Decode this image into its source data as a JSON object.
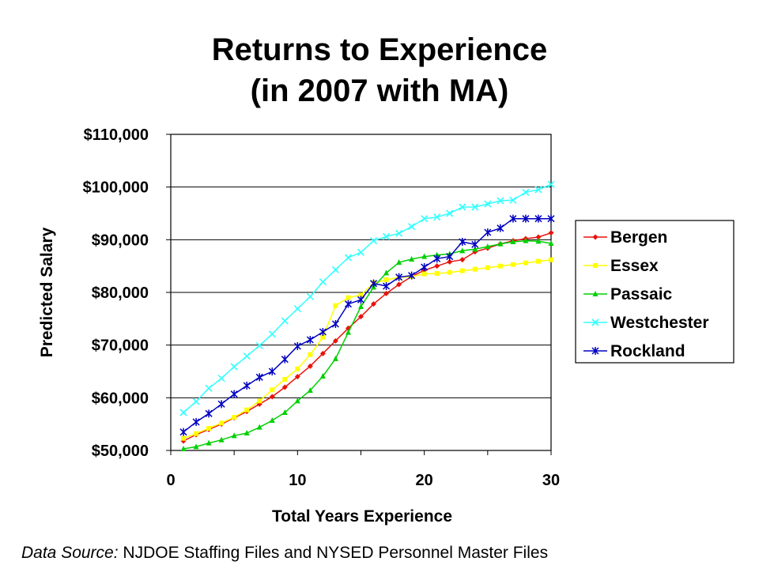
{
  "chart_data": {
    "type": "line",
    "title_line1": "Returns to Experience",
    "title_line2": "(in 2007 with MA)",
    "xlabel": "Total Years Experience",
    "ylabel": "Predicted Salary",
    "xlim": [
      0,
      30
    ],
    "ylim": [
      50000,
      110000
    ],
    "x_ticks": [
      0,
      10,
      20,
      30
    ],
    "y_ticks": [
      50000,
      60000,
      70000,
      80000,
      90000,
      100000,
      110000
    ],
    "y_tick_labels": [
      "$50,000",
      "$60,000",
      "$70,000",
      "$80,000",
      "$90,000",
      "$100,000",
      "$110,000"
    ],
    "x_tick_labels": [
      "0",
      "10",
      "20",
      "30"
    ],
    "grid": "horizontal",
    "legend_position": "right",
    "x": [
      1,
      2,
      3,
      4,
      5,
      6,
      7,
      8,
      9,
      10,
      11,
      12,
      13,
      14,
      15,
      16,
      17,
      18,
      19,
      20,
      21,
      22,
      23,
      24,
      25,
      26,
      27,
      28,
      29,
      30
    ],
    "series": [
      {
        "name": "Bergen",
        "color": "#e8130d",
        "marker": "diamond",
        "values": [
          51800,
          53000,
          54000,
          55000,
          56200,
          57400,
          58800,
          60200,
          62000,
          64000,
          66000,
          68400,
          70800,
          73200,
          75400,
          77800,
          79800,
          81500,
          83000,
          84200,
          85000,
          85800,
          86200,
          87700,
          88400,
          89200,
          89800,
          90200,
          90500,
          91300
        ]
      },
      {
        "name": "Essex",
        "color": "#ffff00",
        "marker": "square",
        "values": [
          52300,
          53200,
          54200,
          55200,
          56300,
          57700,
          59400,
          61500,
          63500,
          65500,
          68200,
          71500,
          77500,
          79000,
          79500,
          81800,
          82400,
          82800,
          83000,
          83500,
          83600,
          83800,
          84100,
          84400,
          84700,
          85000,
          85300,
          85600,
          85900,
          86200
        ]
      },
      {
        "name": "Passaic",
        "color": "#00d000",
        "marker": "triangle",
        "values": [
          50300,
          50700,
          51400,
          52000,
          52800,
          53300,
          54400,
          55700,
          57200,
          59400,
          61400,
          64100,
          67400,
          72400,
          77300,
          81000,
          83700,
          85700,
          86300,
          86800,
          87100,
          87300,
          87900,
          88200,
          88700,
          89200,
          89600,
          89800,
          89700,
          89300
        ]
      },
      {
        "name": "Westchester",
        "color": "#33ffff",
        "marker": "x",
        "values": [
          57200,
          59300,
          61800,
          63700,
          65900,
          67900,
          69900,
          72100,
          74600,
          76900,
          79200,
          82000,
          84300,
          86600,
          87600,
          89800,
          90600,
          91200,
          92500,
          94000,
          94300,
          95000,
          96200,
          96200,
          96800,
          97400,
          97500,
          99000,
          99500,
          100500
        ]
      },
      {
        "name": "Rockland",
        "color": "#0000c0",
        "marker": "star",
        "values": [
          53500,
          55400,
          57000,
          58800,
          60700,
          62300,
          63900,
          65000,
          67300,
          69800,
          71000,
          72500,
          74000,
          77800,
          78600,
          81700,
          81200,
          82900,
          83200,
          84800,
          86400,
          86800,
          89600,
          89100,
          91400,
          92200,
          94000,
          94000,
          94000,
          94000
        ]
      }
    ]
  },
  "source": {
    "prefix": "Data Source:",
    "text": " NJDOE Staffing Files and NYSED Personnel Master Files"
  }
}
